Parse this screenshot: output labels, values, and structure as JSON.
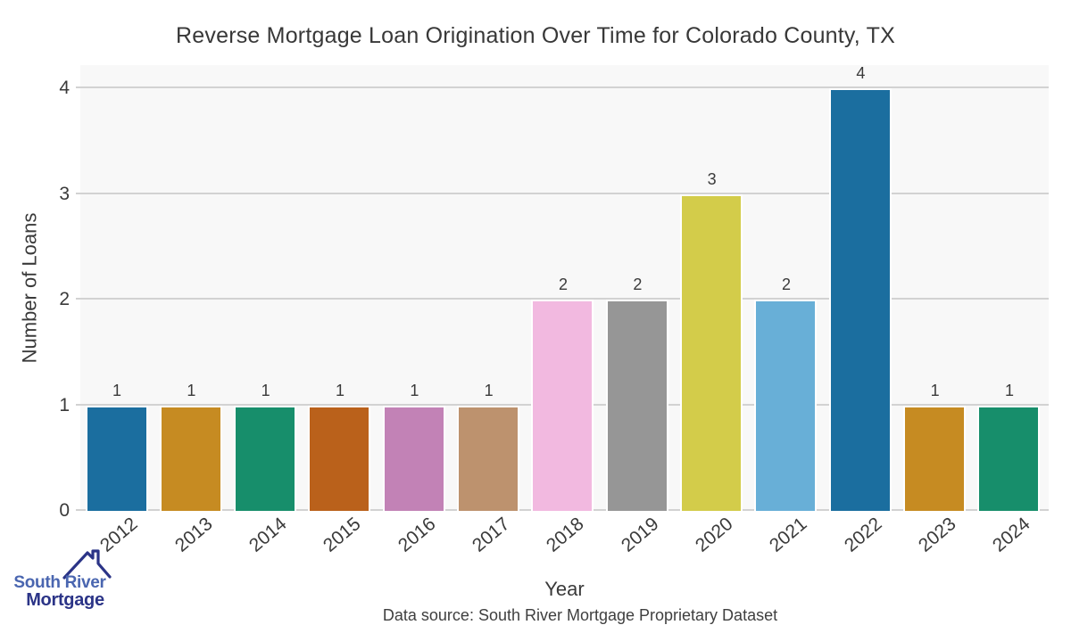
{
  "title": "Reverse Mortgage Loan Origination Over Time for Colorado County, TX",
  "chart_data": {
    "type": "bar",
    "categories": [
      "2012",
      "2013",
      "2014",
      "2015",
      "2016",
      "2017",
      "2018",
      "2019",
      "2020",
      "2021",
      "2022",
      "2023",
      "2024"
    ],
    "values": [
      1,
      1,
      1,
      1,
      1,
      1,
      2,
      2,
      3,
      2,
      4,
      1,
      1
    ],
    "bar_colors": [
      "#1b6e9f",
      "#c68b22",
      "#178e6b",
      "#ba611b",
      "#c282b6",
      "#bd926e",
      "#f2b9e0",
      "#969696",
      "#d3cc4a",
      "#68afd7",
      "#1b6e9f",
      "#c68b22",
      "#178e6b"
    ],
    "title": "Reverse Mortgage Loan Origination Over Time for Colorado County, TX",
    "xlabel": "Year",
    "ylabel": "Number of Loans",
    "ylim": [
      0,
      4
    ],
    "yticks": [
      0,
      1,
      2,
      3,
      4
    ],
    "grid": true,
    "legend": false,
    "plot_background": "#f8f8f8",
    "gridline_color": "#d2d2d2"
  },
  "footer": {
    "source_text": "Data source: South River Mortgage Proprietary Dataset"
  },
  "logo": {
    "line1": "South River",
    "line2": "Mortgage",
    "line1_color": "#4a66b0",
    "line2_color": "#2b3487",
    "roof_color": "#2b3487"
  }
}
